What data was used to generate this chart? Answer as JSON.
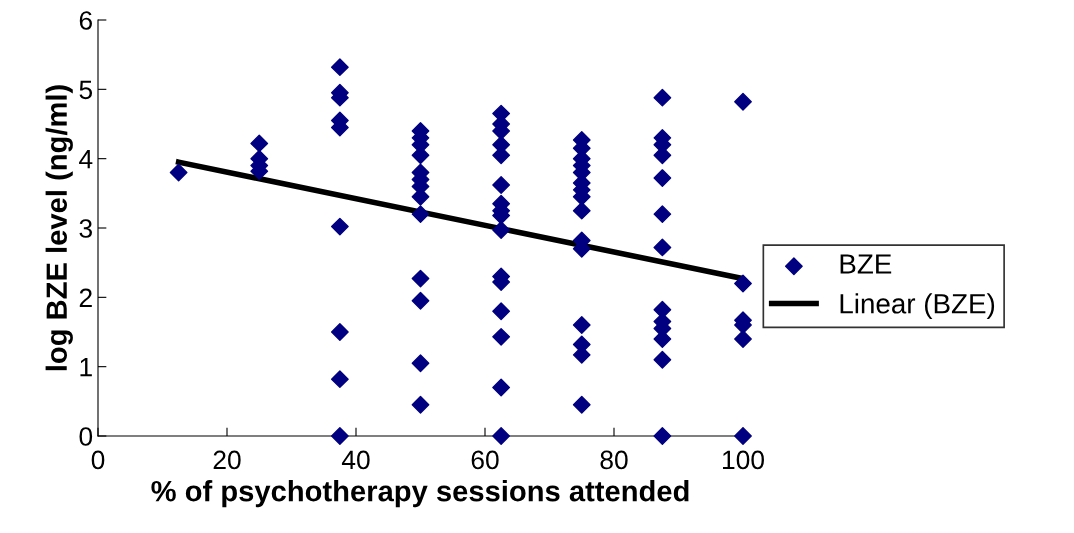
{
  "chart_data": {
    "type": "scatter",
    "xlabel": "% of psychotherapy sessions attended",
    "ylabel": "log BZE level (ng/ml)",
    "xlim": [
      0,
      100
    ],
    "xticks": [
      0,
      20,
      40,
      60,
      80,
      100
    ],
    "ylim": [
      0,
      6
    ],
    "yticks": [
      0,
      1,
      2,
      3,
      4,
      5,
      6
    ],
    "grid": false,
    "legend": "right",
    "series": [
      {
        "name": "BZE",
        "marker": "diamond",
        "color": "#000080",
        "x": [
          12.5,
          25,
          25,
          25,
          25,
          37.5,
          37.5,
          37.5,
          37.5,
          37.5,
          37.5,
          37.5,
          37.5,
          37.5,
          50,
          50,
          50,
          50,
          50,
          50,
          50,
          50,
          50,
          50,
          50,
          50,
          50,
          62.5,
          62.5,
          62.5,
          62.5,
          62.5,
          62.5,
          62.5,
          62.5,
          62.5,
          62.5,
          62.5,
          62.5,
          62.5,
          62.5,
          62.5,
          62.5,
          75,
          75,
          75,
          75,
          75,
          75,
          75,
          75,
          75,
          75,
          75,
          75,
          75,
          75,
          75,
          87.5,
          87.5,
          87.5,
          87.5,
          87.5,
          87.5,
          87.5,
          87.5,
          87.5,
          87.5,
          87.5,
          87.5,
          87.5,
          100,
          100,
          100,
          100,
          100,
          100
        ],
        "values": [
          3.8,
          4.22,
          4.0,
          3.9,
          3.82,
          5.32,
          4.95,
          4.88,
          4.55,
          4.45,
          3.02,
          1.5,
          0.82,
          0,
          4.4,
          4.3,
          4.2,
          4.05,
          3.8,
          3.7,
          3.6,
          3.45,
          3.2,
          2.27,
          1.95,
          1.05,
          0.45,
          4.65,
          4.5,
          4.4,
          4.2,
          4.05,
          3.62,
          3.35,
          3.25,
          3.18,
          2.97,
          2.3,
          2.22,
          1.8,
          1.43,
          0.7,
          0,
          4.27,
          4.15,
          4.0,
          3.9,
          3.8,
          3.65,
          3.55,
          3.45,
          3.25,
          2.82,
          2.7,
          1.6,
          1.32,
          1.17,
          0.45,
          4.88,
          4.3,
          4.2,
          4.05,
          3.72,
          3.2,
          2.72,
          1.82,
          1.65,
          1.55,
          1.4,
          1.1,
          0,
          4.82,
          2.2,
          1.67,
          1.6,
          1.4,
          0
        ]
      },
      {
        "name": "Linear (BZE)",
        "type": "line",
        "color": "#000000",
        "line_style": "solid",
        "marker": "none",
        "x": [
          12.5,
          100
        ],
        "values": [
          3.95,
          2.27
        ]
      }
    ]
  }
}
